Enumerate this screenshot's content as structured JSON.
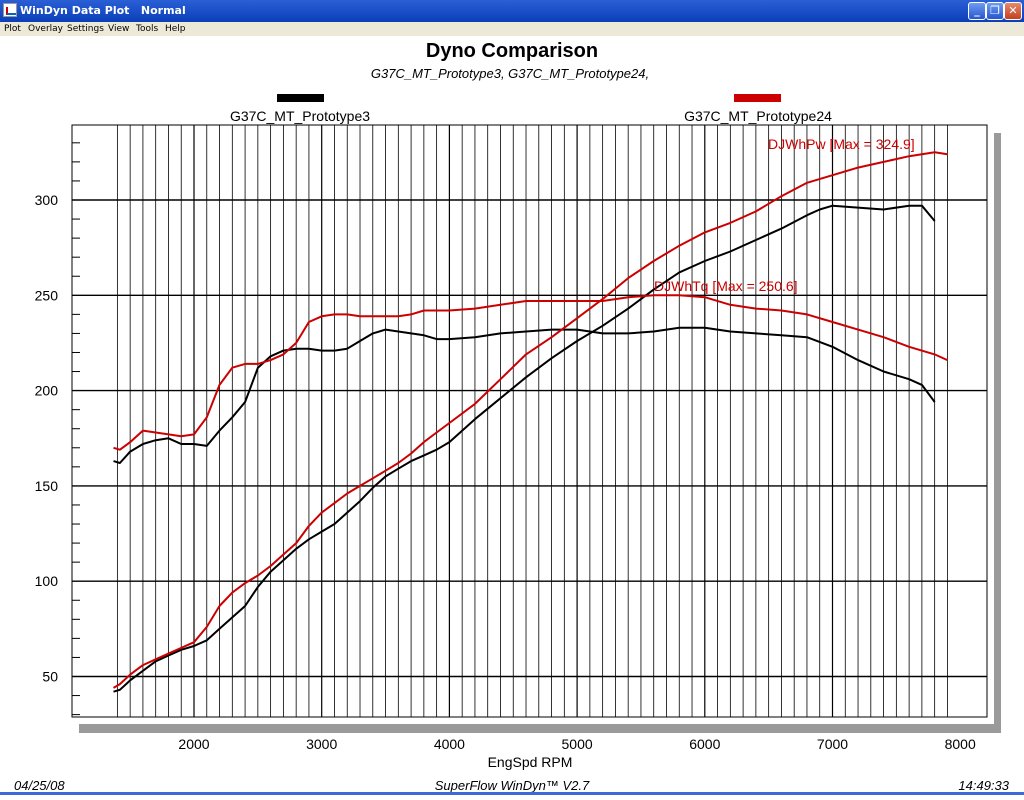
{
  "window": {
    "title": "WinDyn Data Plot   Normal",
    "controls": [
      "_",
      "❐",
      "✕"
    ]
  },
  "menu": [
    "Plot",
    "Overlay",
    "Settings",
    "View",
    "Tools",
    "Help"
  ],
  "chart_data": {
    "type": "line",
    "title": "Dyno Comparison",
    "subtitle": "G37C_MT_Prototype3, G37C_MT_Prototype24,",
    "xlabel": "EngSpd  RPM",
    "ylabel": "",
    "xlim": [
      1280,
      8000
    ],
    "ylim": [
      25,
      335
    ],
    "xticks": [
      2000,
      3000,
      4000,
      5000,
      6000,
      7000,
      8000
    ],
    "yticks": [
      50,
      100,
      150,
      200,
      250,
      300
    ],
    "grid": true,
    "legend": [
      {
        "name": "G37C_MT_Prototype3",
        "color": "#000000",
        "position": "top-left"
      },
      {
        "name": "G37C_MT_Prototype24",
        "color": "#cc0000",
        "position": "top-right"
      }
    ],
    "annotations": [
      {
        "text": "DJWhPw [Max = 324.9]",
        "x": 6500,
        "y": 329,
        "color": "#cc0000"
      },
      {
        "text": "DJWhTq [Max = 250.6]",
        "x": 5600,
        "y": 255,
        "color": "#cc0000"
      }
    ],
    "series": [
      {
        "name": "G37C_MT_Prototype3",
        "measure": "DJWhTq",
        "color": "#000000",
        "x": [
          1370,
          1420,
          1500,
          1600,
          1700,
          1800,
          1900,
          2000,
          2100,
          2200,
          2300,
          2400,
          2500,
          2600,
          2700,
          2800,
          2900,
          3000,
          3100,
          3200,
          3300,
          3400,
          3500,
          3600,
          3700,
          3800,
          3900,
          4000,
          4200,
          4400,
          4600,
          4800,
          5000,
          5200,
          5400,
          5600,
          5800,
          6000,
          6200,
          6400,
          6600,
          6800,
          7000,
          7200,
          7400,
          7600,
          7700,
          7800
        ],
        "y": [
          163,
          162,
          168,
          172,
          174,
          175,
          172,
          172,
          171,
          179,
          186,
          194,
          212,
          218,
          221,
          222,
          222,
          221,
          221,
          222,
          226,
          230,
          232,
          231,
          230,
          229,
          227,
          227,
          228,
          230,
          231,
          232,
          232,
          230,
          230,
          231,
          233,
          233,
          231,
          230,
          229,
          228,
          223,
          216,
          210,
          206,
          203,
          194
        ]
      },
      {
        "name": "G37C_MT_Prototype3",
        "measure": "DJWhPw",
        "color": "#000000",
        "x": [
          1370,
          1420,
          1500,
          1600,
          1700,
          1800,
          1900,
          2000,
          2100,
          2200,
          2300,
          2400,
          2500,
          2600,
          2700,
          2800,
          2900,
          3000,
          3100,
          3200,
          3300,
          3400,
          3500,
          3600,
          3700,
          3800,
          3900,
          4000,
          4200,
          4400,
          4600,
          4800,
          5000,
          5200,
          5400,
          5600,
          5800,
          6000,
          6200,
          6400,
          6600,
          6800,
          6900,
          7000,
          7200,
          7400,
          7600,
          7700,
          7800
        ],
        "y": [
          42,
          43,
          48,
          53,
          58,
          61,
          64,
          66,
          69,
          75,
          81,
          87,
          97,
          105,
          111,
          117,
          122,
          126,
          130,
          136,
          142,
          149,
          155,
          159,
          163,
          166,
          169,
          173,
          185,
          196,
          207,
          217,
          226,
          234,
          243,
          253,
          262,
          268,
          273,
          279,
          285,
          292,
          295,
          297,
          296,
          295,
          297,
          297,
          289
        ]
      },
      {
        "name": "G37C_MT_Prototype24",
        "measure": "DJWhTq",
        "color": "#cc0000",
        "x": [
          1370,
          1420,
          1500,
          1600,
          1700,
          1800,
          1900,
          2000,
          2100,
          2200,
          2300,
          2400,
          2500,
          2600,
          2700,
          2800,
          2900,
          3000,
          3100,
          3200,
          3300,
          3400,
          3500,
          3600,
          3700,
          3800,
          3900,
          4000,
          4200,
          4400,
          4600,
          4800,
          5000,
          5200,
          5400,
          5600,
          5800,
          6000,
          6200,
          6400,
          6600,
          6800,
          7000,
          7200,
          7400,
          7600,
          7800,
          7900
        ],
        "y": [
          170,
          169,
          173,
          179,
          178,
          177,
          176,
          177,
          186,
          203,
          212,
          214,
          214,
          216,
          219,
          225,
          236,
          239,
          240,
          240,
          239,
          239,
          239,
          239,
          240,
          242,
          242,
          242,
          243,
          245,
          247,
          247,
          247,
          247,
          249,
          250,
          250,
          249,
          245,
          243,
          242,
          240,
          236,
          232,
          228,
          223,
          219,
          216
        ]
      },
      {
        "name": "G37C_MT_Prototype24",
        "measure": "DJWhPw",
        "color": "#cc0000",
        "x": [
          1370,
          1420,
          1500,
          1600,
          1700,
          1800,
          1900,
          2000,
          2100,
          2200,
          2300,
          2400,
          2500,
          2600,
          2700,
          2800,
          2900,
          3000,
          3100,
          3200,
          3300,
          3400,
          3500,
          3600,
          3700,
          3800,
          3900,
          4000,
          4200,
          4400,
          4600,
          4800,
          5000,
          5200,
          5400,
          5600,
          5800,
          6000,
          6200,
          6400,
          6600,
          6800,
          7000,
          7200,
          7400,
          7600,
          7800,
          7900
        ],
        "y": [
          44,
          46,
          51,
          56,
          59,
          62,
          65,
          68,
          76,
          87,
          94,
          99,
          103,
          108,
          114,
          120,
          129,
          136,
          141,
          146,
          150,
          154,
          158,
          162,
          167,
          173,
          178,
          183,
          193,
          206,
          219,
          228,
          238,
          248,
          259,
          268,
          276,
          283,
          288,
          294,
          302,
          309,
          313,
          317,
          320,
          323,
          325,
          324
        ]
      }
    ]
  },
  "footer": {
    "date": "04/25/08",
    "software": "SuperFlow WinDyn™ V2.7",
    "time": "14:49:33"
  }
}
